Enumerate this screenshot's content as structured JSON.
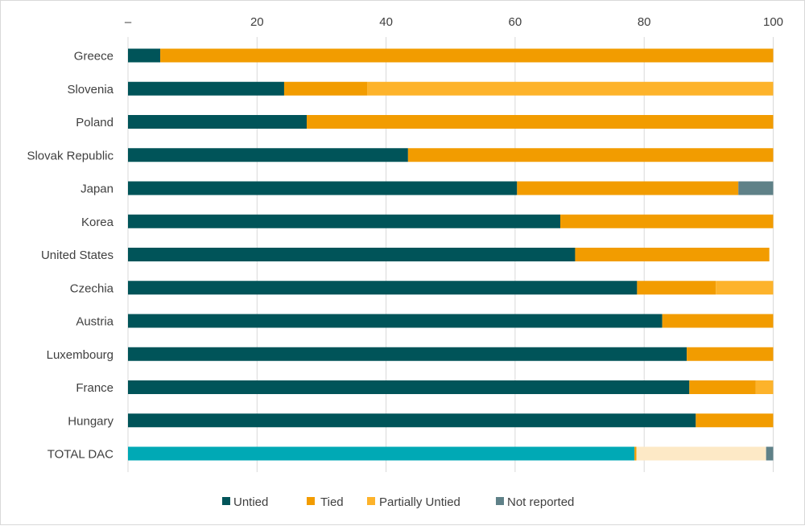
{
  "chart_data": {
    "type": "bar",
    "orientation": "horizontal",
    "stacked": true,
    "title": "",
    "xlabel": "",
    "ylabel": "",
    "xlim": [
      0,
      100
    ],
    "x_ticks": [
      "–",
      "20",
      "40",
      "60",
      "80",
      "100"
    ],
    "x_axis_position": "top",
    "grid": "vertical",
    "legend_position": "bottom",
    "categories": [
      "Greece",
      "Slovenia",
      "Poland",
      "Slovak Republic",
      "Japan",
      "Korea",
      "United States",
      "Czechia",
      "Austria",
      "Luxembourg",
      "France",
      "Hungary",
      "TOTAL DAC"
    ],
    "series": [
      {
        "name": "Untied",
        "color": "#005459",
        "values": [
          5.0,
          24.2,
          27.7,
          43.4,
          60.3,
          67.0,
          69.3,
          78.9,
          82.8,
          86.6,
          87.0,
          88.0,
          78.5
        ]
      },
      {
        "name": "Tied",
        "color": "#F29C00",
        "values": [
          95.0,
          12.9,
          72.3,
          56.6,
          34.3,
          33.0,
          30.1,
          12.2,
          17.2,
          13.4,
          10.3,
          12.0,
          0.3
        ]
      },
      {
        "name": "Partially Untied",
        "color": "#FDB32B",
        "values": [
          0,
          62.9,
          0,
          0,
          0,
          0,
          0,
          8.9,
          0,
          0,
          2.7,
          0,
          20.1
        ]
      },
      {
        "name": "Not reported",
        "color": "#5F8188",
        "values": [
          0,
          0,
          0,
          0,
          5.4,
          0,
          0,
          0,
          0,
          0,
          0,
          0,
          1.1
        ]
      }
    ],
    "highlight_category": "TOTAL DAC",
    "highlight_colors": {
      "Untied": "#00A9B5",
      "Tied": "#F29C00",
      "Partially Untied": "#FDE9C6",
      "Not reported": "#5F8188"
    }
  }
}
